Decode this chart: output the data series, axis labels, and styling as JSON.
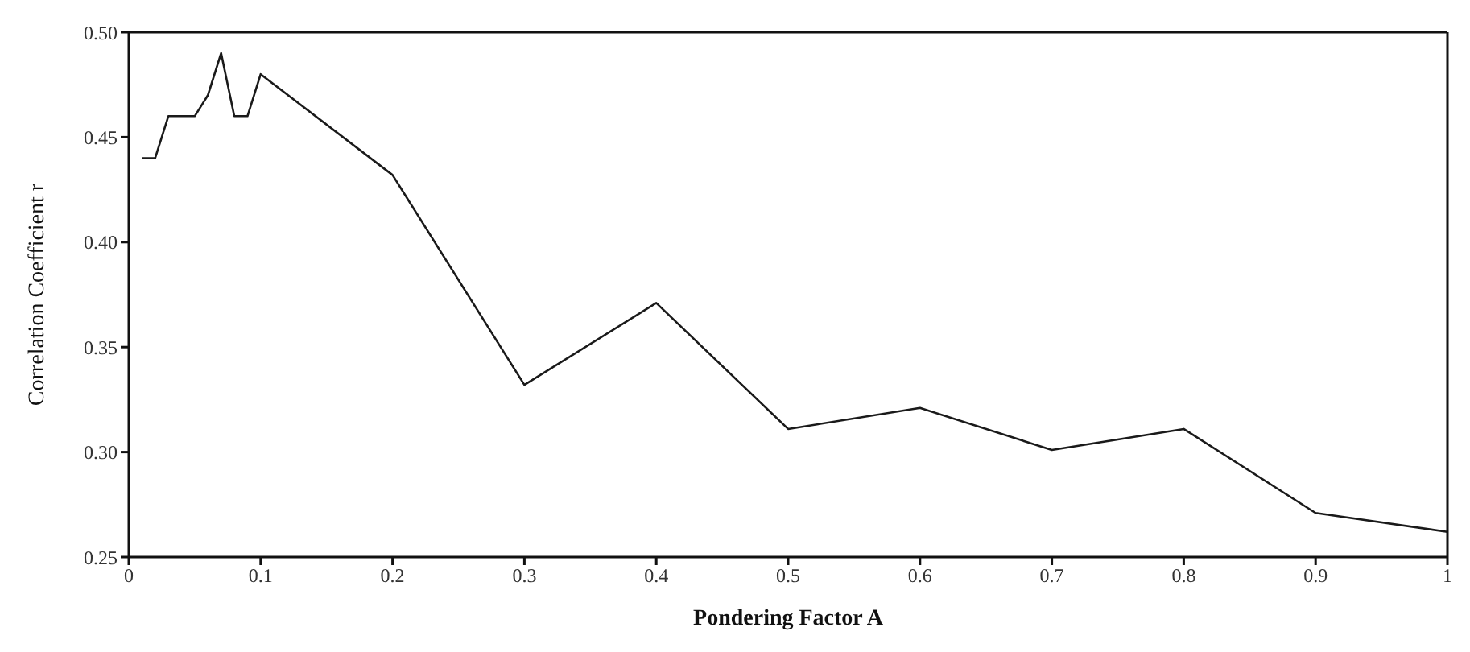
{
  "chart_data": {
    "type": "line",
    "xlabel": "Pondering Factor  A",
    "ylabel": "Correlation Coefficient  r",
    "x": [
      0.01,
      0.02,
      0.03,
      0.04,
      0.05,
      0.06,
      0.07,
      0.08,
      0.09,
      0.1,
      0.2,
      0.3,
      0.4,
      0.5,
      0.6,
      0.7,
      0.8,
      0.9,
      1
    ],
    "series": [
      {
        "color": "#1a1a1a",
        "values": [
          0.44,
          0.44,
          0.46,
          0.46,
          0.46,
          0.47,
          0.49,
          0.46,
          0.46,
          0.48,
          0.432,
          0.332,
          0.371,
          0.311,
          0.321,
          0.301,
          0.311,
          0.271,
          0.262
        ]
      }
    ],
    "xlim": [
      0,
      1
    ],
    "xticks": [
      0,
      0.1,
      0.2,
      0.3,
      0.4,
      0.5,
      0.6,
      0.7,
      0.8,
      0.9,
      1
    ],
    "ylim": [
      0.25,
      0.5
    ],
    "yticks": [
      0.25,
      {
        "value": 0.3,
        "label": "0.30"
      },
      0.35,
      {
        "value": 0.4,
        "label": "0.40"
      },
      0.45,
      {
        "value": 0.5,
        "label": "0.50"
      }
    ],
    "grid": false,
    "legend": false,
    "marker": "none",
    "line_style": "solid"
  }
}
